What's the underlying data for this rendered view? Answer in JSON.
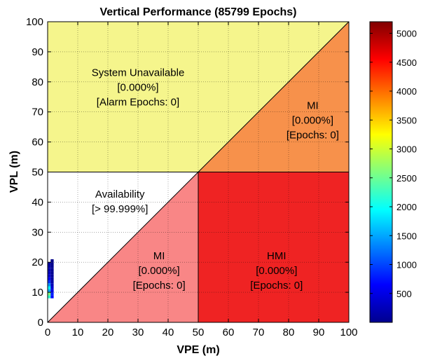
{
  "chart_data": {
    "type": "heatmap",
    "title": "Vertical Performance (85799 Epochs)",
    "xlabel": "VPE (m)",
    "ylabel": "VPL (m)",
    "xlim": [
      0,
      100
    ],
    "ylim": [
      0,
      100
    ],
    "xticks": [
      0,
      10,
      20,
      30,
      40,
      50,
      60,
      70,
      80,
      90,
      100
    ],
    "yticks": [
      0,
      10,
      20,
      30,
      40,
      50,
      60,
      70,
      80,
      90,
      100
    ],
    "grid": "dotted",
    "alarm_limit": 50,
    "regions": [
      {
        "id": "system-unavailable",
        "color": "#f5f58c",
        "lines": [
          "System Unavailable",
          "[0.000%]",
          "[Alarm Epochs: 0]"
        ],
        "label_at": [
          30,
          78
        ]
      },
      {
        "id": "mi-upper",
        "color": "#f7914b",
        "lines": [
          "MI",
          "[0.000%]",
          "[Epochs: 0]"
        ],
        "label_at": [
          88,
          67
        ]
      },
      {
        "id": "availability",
        "color": "#ffffff",
        "lines": [
          "Availability",
          "[> 99.999%]"
        ],
        "label_at": [
          24,
          40
        ]
      },
      {
        "id": "mi-lower",
        "color": "#f98686",
        "lines": [
          "MI",
          "[0.000%]",
          "[Epochs: 0]"
        ],
        "label_at": [
          37,
          17
        ]
      },
      {
        "id": "hmi",
        "color": "#ef2323",
        "lines": [
          "HMI",
          "[0.000%]",
          "[Epochs: 0]"
        ],
        "label_at": [
          76,
          17
        ]
      }
    ],
    "density_cells": [
      {
        "vpe": 1,
        "vpl": 9,
        "count": 2200
      },
      {
        "vpe": 1,
        "vpl": 10,
        "count": 2600
      },
      {
        "vpe": 1,
        "vpl": 11,
        "count": 1500
      },
      {
        "vpe": 1,
        "vpl": 12,
        "count": 1900
      },
      {
        "vpe": 1,
        "vpl": 13,
        "count": 1400
      },
      {
        "vpe": 1,
        "vpl": 14,
        "count": 900
      },
      {
        "vpe": 1,
        "vpl": 15,
        "count": 600
      },
      {
        "vpe": 1,
        "vpl": 16,
        "count": 400
      },
      {
        "vpe": 1,
        "vpl": 17,
        "count": 300
      },
      {
        "vpe": 1,
        "vpl": 18,
        "count": 250
      },
      {
        "vpe": 1,
        "vpl": 19,
        "count": 200
      },
      {
        "vpe": 1,
        "vpl": 20,
        "count": 150
      },
      {
        "vpe": 2,
        "vpl": 9,
        "count": 700
      },
      {
        "vpe": 2,
        "vpl": 10,
        "count": 800
      },
      {
        "vpe": 2,
        "vpl": 11,
        "count": 500
      },
      {
        "vpe": 2,
        "vpl": 12,
        "count": 400
      },
      {
        "vpe": 2,
        "vpl": 13,
        "count": 300
      },
      {
        "vpe": 2,
        "vpl": 14,
        "count": 200
      },
      {
        "vpe": 2,
        "vpl": 15,
        "count": 150
      },
      {
        "vpe": 2,
        "vpl": 16,
        "count": 120
      },
      {
        "vpe": 2,
        "vpl": 17,
        "count": 100
      },
      {
        "vpe": 2,
        "vpl": 18,
        "count": 100
      },
      {
        "vpe": 2,
        "vpl": 19,
        "count": 80
      },
      {
        "vpe": 2,
        "vpl": 20,
        "count": 60
      },
      {
        "vpe": 2,
        "vpl": 21,
        "count": 50
      }
    ],
    "colorbar": {
      "colormap": "jet",
      "min": 0,
      "max": 5200,
      "ticks": [
        500,
        1000,
        1500,
        2000,
        2500,
        3000,
        3500,
        4000,
        4500,
        5000
      ]
    }
  }
}
